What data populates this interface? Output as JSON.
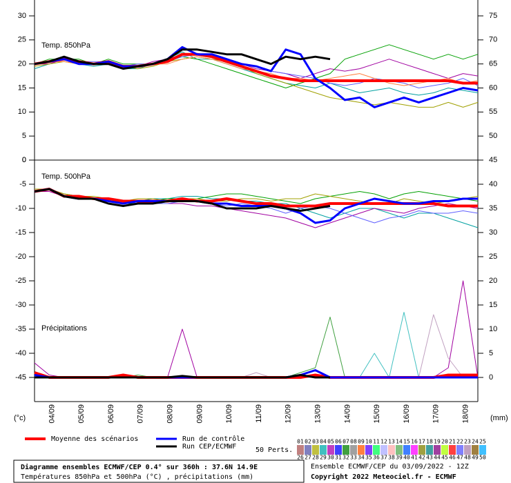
{
  "chart_data": {
    "type": "line",
    "categories": [
      null,
      "04/09",
      null,
      "05/09",
      null,
      "06/09",
      null,
      "07/09",
      null,
      "08/09",
      null,
      "09/09",
      null,
      "10/09",
      null,
      "11/09",
      null,
      "12/09",
      null,
      "13/09",
      null,
      "14/09",
      null,
      "15/09",
      null,
      "16/09",
      null,
      "17/09",
      null,
      "18/09",
      null
    ],
    "y_unit": "(°c)",
    "y2_unit": "(mm)",
    "panels": [
      {
        "label": "Temp. 850hPa",
        "ylim": [
          0,
          33.3
        ],
        "yticks": [
          30,
          25,
          20,
          15,
          10,
          5,
          0
        ],
        "y2lim": [
          45,
          78.3
        ],
        "y2ticks": [
          75,
          70,
          65,
          60,
          55,
          50
        ],
        "series": [
          {
            "color": "#00a0a0",
            "values": [
              19,
              20,
              21,
              20,
              19.5,
              20,
              19,
              19,
              20,
              21,
              22.5,
              21,
              21,
              20,
              19,
              18,
              17,
              16,
              15.5,
              15,
              16,
              15,
              14,
              14.5,
              15,
              14,
              13.5,
              14,
              15,
              14.5,
              14
            ]
          },
          {
            "color": "#a000a0",
            "values": [
              20,
              20,
              21,
              20.5,
              20,
              20,
              19,
              19.5,
              20.5,
              21,
              22,
              22,
              22,
              21,
              20,
              19,
              18.5,
              18,
              17,
              18,
              19,
              18.5,
              19,
              20,
              21,
              20,
              19,
              18,
              17,
              18,
              17.5
            ]
          },
          {
            "color": "#00a000",
            "values": [
              20,
              21,
              21,
              21,
              20,
              21,
              20,
              20,
              20,
              21,
              21.5,
              21,
              20,
              19,
              18,
              17,
              16,
              15,
              16,
              17,
              18,
              21,
              22,
              23,
              24,
              23,
              22,
              21,
              22,
              21,
              22
            ]
          },
          {
            "color": "#a0a000",
            "values": [
              19.5,
              20,
              20.5,
              20,
              20,
              20,
              19.5,
              19,
              19.5,
              20.5,
              21,
              21.5,
              21,
              20.5,
              19.5,
              18,
              17,
              16,
              15,
              14,
              13,
              12.5,
              12,
              11.5,
              12,
              11.5,
              11,
              11,
              12,
              11,
              12
            ]
          },
          {
            "color": "#6060ff",
            "values": [
              20,
              20.5,
              21,
              20.5,
              20.5,
              20.5,
              19.5,
              20,
              20,
              20.5,
              21.5,
              22,
              21.5,
              20.5,
              20,
              19.5,
              18.5,
              18,
              17.5,
              17,
              16,
              15.5,
              16,
              17,
              16.5,
              16,
              15,
              15.5,
              16,
              17,
              15.5
            ]
          },
          {
            "color": "#ff8040",
            "values": [
              20,
              20.5,
              20.5,
              20,
              20,
              20,
              19,
              19.5,
              20,
              20,
              21,
              21.5,
              21,
              20,
              19,
              18.5,
              18,
              17,
              17,
              16.5,
              17,
              17.5,
              18,
              17,
              16,
              15.5,
              16,
              16.5,
              17,
              16,
              16.5
            ]
          },
          {
            "name": "Moyenne des scénarios",
            "color": "#ff0000",
            "width": 4,
            "values": [
              20,
              20.5,
              21,
              20.5,
              20,
              20.5,
              19.5,
              19.5,
              20,
              20.5,
              22,
              22,
              21.5,
              20.5,
              19.5,
              18.5,
              17.5,
              17,
              16.5,
              16.5,
              16.5,
              16.5,
              16.5,
              16.5,
              16.5,
              16.5,
              16.5,
              16.5,
              16.5,
              16,
              16
            ]
          },
          {
            "name": "Run de contrôle",
            "color": "#0000ff",
            "width": 3,
            "values": [
              20,
              20.5,
              21,
              20,
              20,
              20.5,
              19.5,
              19.5,
              20,
              21,
              23.5,
              22,
              22,
              21,
              20,
              19.5,
              18.5,
              23,
              22,
              17,
              15,
              12.5,
              13,
              11,
              12,
              13,
              12,
              13,
              14,
              15,
              14.5
            ]
          },
          {
            "name": "Run CEP/ECMWF",
            "color": "#000000",
            "width": 3,
            "values": [
              20,
              20.5,
              21.5,
              20.5,
              20,
              20,
              19,
              19.5,
              20,
              21,
              23,
              23,
              22.5,
              22,
              22,
              21,
              20,
              21.5,
              21,
              21.5,
              21,
              null,
              null,
              null,
              null,
              null,
              null,
              null,
              null,
              null,
              null
            ]
          }
        ]
      },
      {
        "label": "Temp. 500hPa",
        "label2": "Précipitations",
        "ylim": [
          -50,
          0
        ],
        "yticks": [
          0,
          -5,
          -10,
          -15,
          -20,
          -25,
          -30,
          -35,
          -40,
          -45
        ],
        "y2lim": [
          -5,
          45
        ],
        "y2ticks": [
          45,
          40,
          35,
          30,
          25,
          20,
          15,
          10,
          5,
          0
        ],
        "series": [
          {
            "color": "#00a0a0",
            "values": [
              -6.5,
              -6,
              -7.5,
              -8,
              -8,
              -8.5,
              -8.5,
              -8.5,
              -8,
              -8,
              -7.5,
              -7.5,
              -8,
              -8,
              -8.5,
              -8.5,
              -9,
              -9,
              -10,
              -11,
              -12,
              -11,
              -10,
              -10,
              -11,
              -12,
              -11,
              -11,
              -12,
              -13,
              -14
            ]
          },
          {
            "color": "#00a000",
            "values": [
              -6.5,
              -6,
              -7,
              -7.5,
              -8,
              -8,
              -9,
              -9,
              -8.5,
              -8,
              -8,
              -8,
              -7.5,
              -7,
              -7,
              -7.5,
              -8,
              -8.5,
              -9,
              -8,
              -7.5,
              -7,
              -6.5,
              -7,
              -8,
              -7,
              -6.5,
              -7,
              -7.5,
              -8,
              -8.5
            ]
          },
          {
            "color": "#a000a0",
            "values": [
              -6.5,
              -6.5,
              -7.5,
              -7.5,
              -8,
              -8.5,
              -9,
              -8.5,
              -9,
              -9,
              -9,
              -9.5,
              -9.5,
              -10,
              -10.5,
              -11,
              -11.5,
              -12,
              -13,
              -14,
              -13,
              -12,
              -11,
              -10,
              -10.5,
              -11,
              -10,
              -9.5,
              -9,
              -9.5,
              -10
            ]
          },
          {
            "color": "#a0a000",
            "values": [
              -6,
              -6,
              -7,
              -7.5,
              -7.5,
              -8,
              -8.5,
              -8,
              -8,
              -8.5,
              -8,
              -8,
              -8.5,
              -8.5,
              -8,
              -8,
              -8.5,
              -8,
              -8,
              -7,
              -7.5,
              -8,
              -8.5,
              -9,
              -9,
              -8,
              -8.5,
              -9,
              -8.5,
              -8,
              -7.5
            ]
          },
          {
            "color": "#6060ff",
            "values": [
              -6.5,
              -6,
              -7.5,
              -8,
              -8,
              -8,
              -8.5,
              -9,
              -9,
              -9,
              -8.5,
              -8.5,
              -9,
              -9.5,
              -9,
              -9.5,
              -10,
              -11,
              -10,
              -9.5,
              -10,
              -11,
              -12,
              -13,
              -12,
              -11.5,
              -10.5,
              -11,
              -11,
              -10.5,
              -11
            ]
          },
          {
            "color": "#a000a0",
            "axis": "y2",
            "values": [
              3,
              0.5,
              0,
              0,
              0,
              0,
              0,
              0,
              0,
              0,
              10,
              0,
              0,
              0,
              0,
              0,
              0,
              0,
              0,
              0,
              0,
              0,
              0,
              0,
              0,
              0,
              0,
              0,
              2,
              20,
              0
            ]
          },
          {
            "color": "#40a040",
            "axis": "y2",
            "values": [
              1,
              0,
              0,
              0,
              0,
              0,
              0,
              0.5,
              0,
              0,
              0,
              0,
              0,
              0,
              0,
              0,
              0,
              0,
              1,
              2,
              12.5,
              0,
              0,
              0,
              0,
              0,
              0,
              0,
              0,
              0,
              0
            ]
          },
          {
            "color": "#40c0c0",
            "axis": "y2",
            "values": [
              0,
              0,
              0,
              0,
              0,
              0,
              0,
              0,
              0,
              0,
              0,
              0,
              0,
              0,
              0,
              0,
              0,
              0,
              0,
              0,
              0,
              0,
              0,
              5,
              0,
              13.5,
              0,
              0,
              0,
              0,
              0
            ]
          },
          {
            "color": "#c0a0c0",
            "axis": "y2",
            "values": [
              0,
              0,
              0,
              0,
              0,
              0,
              0,
              0,
              0,
              0,
              0,
              0,
              0,
              0,
              0,
              1,
              0,
              0,
              0,
              0,
              0,
              0,
              0,
              0,
              0,
              0,
              0,
              13,
              4,
              0,
              0
            ]
          },
          {
            "color": "#ff0000",
            "width": 4,
            "values": [
              -6.5,
              -6,
              -7.5,
              -7.5,
              -8,
              -8,
              -8.5,
              -8.5,
              -8.5,
              -8.5,
              -8,
              -8.5,
              -8.5,
              -8,
              -8.5,
              -9,
              -9,
              -9.5,
              -9.5,
              -9.5,
              -9,
              -9,
              -9,
              -9,
              -9,
              -9,
              -9,
              -9,
              -9.5,
              -9.5,
              -9.5
            ]
          },
          {
            "color": "#0000ff",
            "width": 3,
            "values": [
              -6.5,
              -6,
              -7.5,
              -8,
              -8,
              -8.5,
              -9,
              -8.5,
              -8.5,
              -8.5,
              -8.5,
              -8.5,
              -9,
              -9,
              -9.5,
              -9.5,
              -9.5,
              -10,
              -11,
              -13,
              -12.5,
              -10,
              -9,
              -8,
              -8.5,
              -9,
              -9,
              -8.5,
              -8.5,
              -8,
              -8
            ]
          },
          {
            "color": "#000000",
            "width": 3,
            "values": [
              -6.5,
              -6,
              -7.5,
              -8,
              -8,
              -9,
              -9.5,
              -9,
              -9,
              -8.5,
              -8.5,
              -8.5,
              -9,
              -10,
              -10,
              -10,
              -9.5,
              -10,
              -10.5,
              -10,
              -9.5,
              null,
              null,
              null,
              null,
              null,
              null,
              null,
              null,
              null,
              null
            ]
          },
          {
            "color": "#ff0000",
            "width": 4,
            "axis": "y2",
            "values": [
              1,
              0,
              0,
              0,
              0,
              0,
              0.5,
              0,
              0,
              0,
              0,
              0,
              0,
              0,
              0,
              0,
              0,
              0,
              0,
              0.5,
              0,
              0,
              0,
              0,
              0,
              0,
              0,
              0,
              0.5,
              0.5,
              0.5
            ]
          },
          {
            "color": "#0000ff",
            "width": 3,
            "axis": "y2",
            "values": [
              0.5,
              0,
              0,
              0,
              0,
              0,
              0,
              0,
              0,
              0,
              0,
              0,
              0,
              0,
              0,
              0,
              0,
              0,
              0.5,
              1.5,
              0,
              0,
              0,
              0,
              0,
              0,
              0,
              0,
              0,
              0,
              0
            ]
          },
          {
            "color": "#000000",
            "width": 3,
            "axis": "y2",
            "values": [
              0,
              0,
              0,
              0,
              0,
              0,
              0,
              0,
              0,
              0,
              0.3,
              0,
              0,
              0,
              0,
              0,
              0,
              0,
              0.5,
              0,
              0,
              null,
              null,
              null,
              null,
              null,
              null,
              null,
              null,
              null,
              null
            ]
          }
        ]
      }
    ],
    "perturbations": {
      "label": "50 Perts.",
      "members": [
        "01",
        "02",
        "03",
        "04",
        "05",
        "06",
        "07",
        "08",
        "09",
        "10",
        "11",
        "12",
        "13",
        "14",
        "15",
        "16",
        "17",
        "18",
        "19",
        "20",
        "21",
        "22",
        "23",
        "24",
        "25",
        "26",
        "27",
        "28",
        "29",
        "30",
        "31",
        "32",
        "33",
        "34",
        "35",
        "36",
        "37",
        "38",
        "39",
        "40",
        "41",
        "42",
        "43",
        "44",
        "45",
        "46",
        "47",
        "48",
        "49",
        "50"
      ],
      "colors": [
        "#c08080",
        "#8080c0",
        "#c0c040",
        "#40c0c0",
        "#c040c0",
        "#4040ff",
        "#40a040",
        "#a0a0a0",
        "#ff8040",
        "#8040ff",
        "#40ff80",
        "#c0c0ff",
        "#ffc0c0",
        "#80c080",
        "#4080ff",
        "#ff40ff",
        "#a0a040",
        "#40a0a0",
        "#a040a0",
        "#c0ff40",
        "#ff4040",
        "#8080ff",
        "#c0a0c0",
        "#a08040",
        "#40c0ff"
      ]
    },
    "footer": {
      "title": "Diagramme ensembles ECMWF/CEP 0.4° sur 360h : 37.6N 14.9E",
      "subtitle": "Températures 850hPa et 500hPa (°C) , précipitations (mm)",
      "run": "Ensemble ECMWF/CEP du 03/09/2022 - 12Z",
      "copyright": "Copyright 2022 Meteociel.fr - ECMWF"
    }
  }
}
